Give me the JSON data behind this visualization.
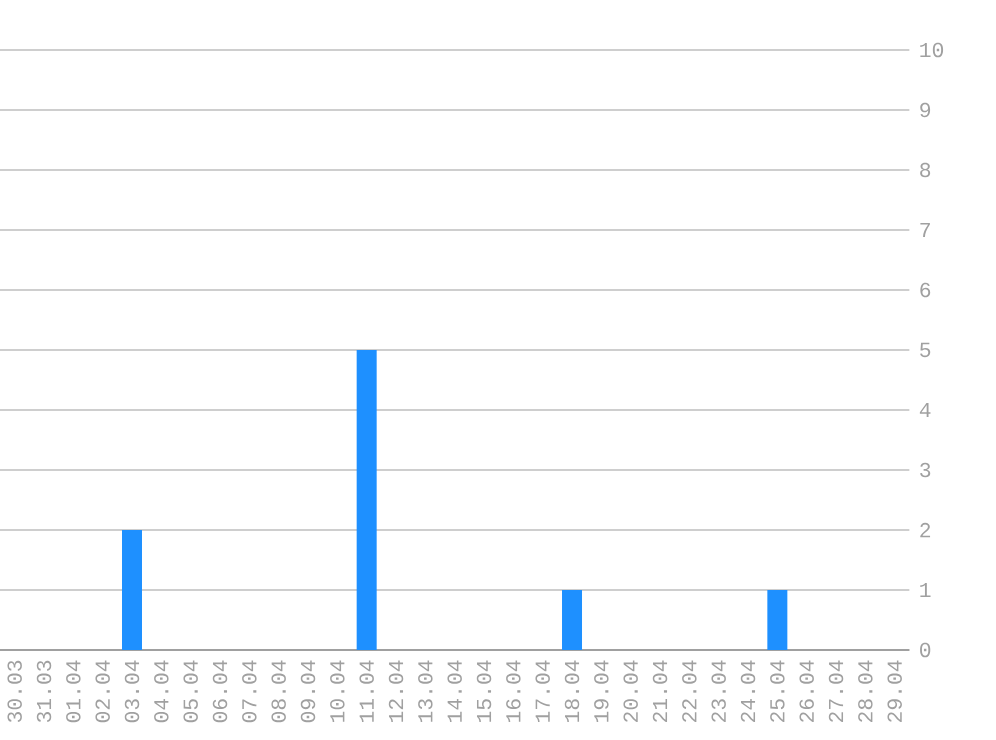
{
  "chart_data": {
    "type": "bar",
    "categories": [
      "30.03",
      "31.03",
      "01.04",
      "02.04",
      "03.04",
      "04.04",
      "05.04",
      "06.04",
      "07.04",
      "08.04",
      "09.04",
      "10.04",
      "11.04",
      "12.04",
      "13.04",
      "14.04",
      "15.04",
      "16.04",
      "17.04",
      "18.04",
      "19.04",
      "20.04",
      "21.04",
      "22.04",
      "23.04",
      "24.04",
      "25.04",
      "26.04",
      "27.04",
      "28.04",
      "29.04"
    ],
    "values": [
      0,
      0,
      0,
      0,
      2,
      0,
      0,
      0,
      0,
      0,
      0,
      0,
      5,
      0,
      0,
      0,
      0,
      0,
      0,
      1,
      0,
      0,
      0,
      0,
      0,
      0,
      1,
      0,
      0,
      0,
      0
    ],
    "color": "#1e90ff",
    "ylim": [
      0,
      10
    ],
    "yticks": [
      0,
      1,
      2,
      3,
      4,
      5,
      6,
      7,
      8,
      9,
      10
    ],
    "grid": "y"
  }
}
